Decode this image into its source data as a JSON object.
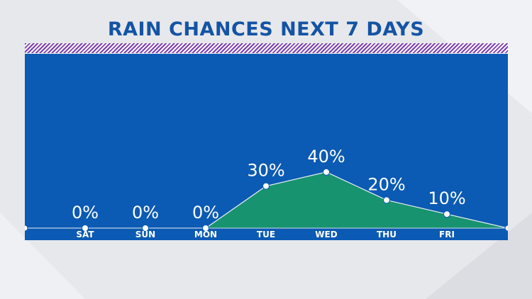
{
  "page": {
    "title": "RAIN CHANCES NEXT 7 DAYS"
  },
  "colors": {
    "title": "#1454a4",
    "panel": "#0b5ab3",
    "area_fill": "#17936f",
    "stripe": "#7b3fb2",
    "text": "#ffffff"
  },
  "chart_data": {
    "type": "area",
    "categories": [
      "SAT",
      "SUN",
      "MON",
      "TUE",
      "WED",
      "THU",
      "FRI"
    ],
    "values": [
      0,
      0,
      0,
      30,
      40,
      20,
      10
    ],
    "value_labels": [
      "0%",
      "0%",
      "0%",
      "30%",
      "40%",
      "20%",
      "10%"
    ],
    "start_value": 0,
    "end_value": 0,
    "unit": "%",
    "title": "RAIN CHANCES NEXT 7 DAYS",
    "xlabel": "",
    "ylabel": "",
    "ylim": [
      0,
      100
    ],
    "grid": false,
    "legend": "none"
  }
}
